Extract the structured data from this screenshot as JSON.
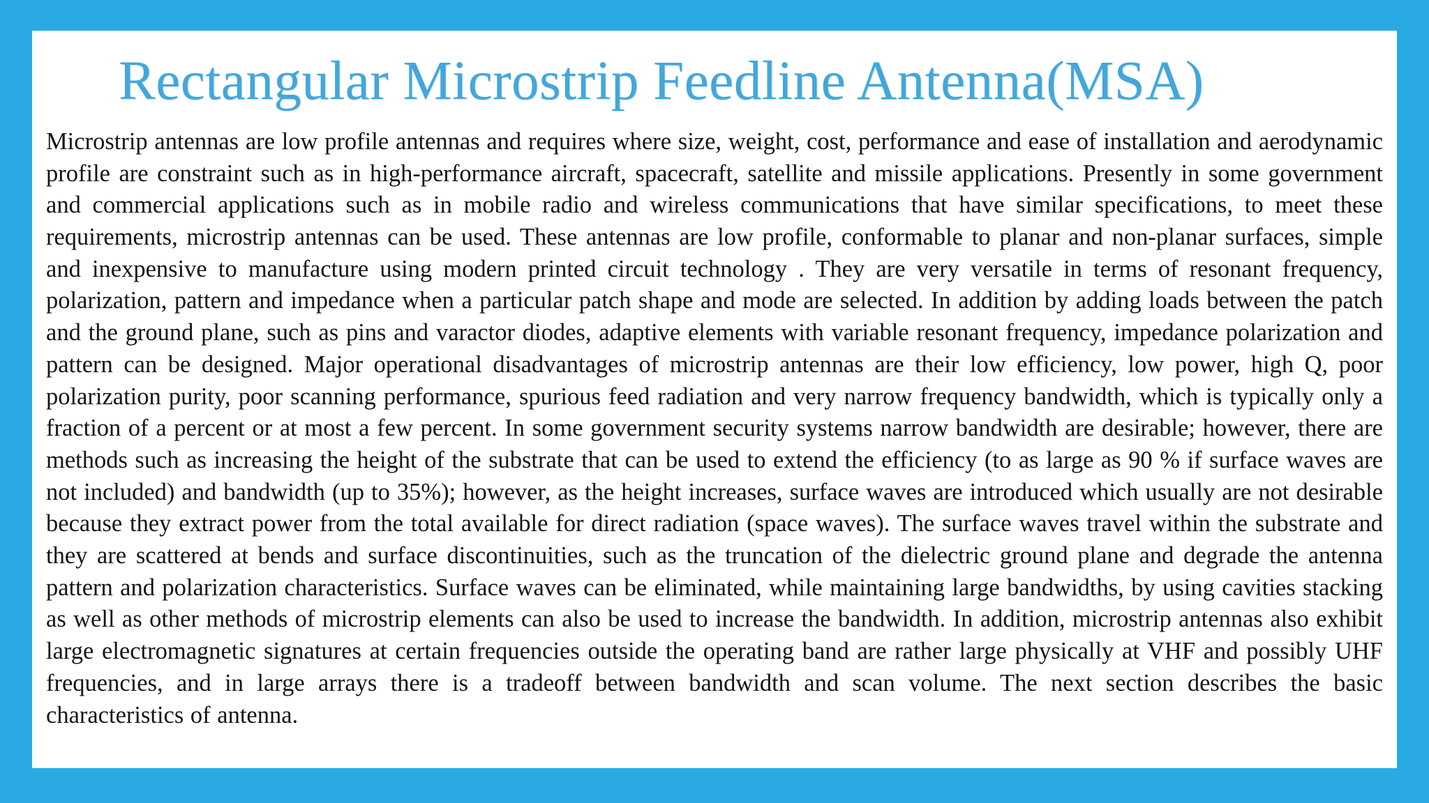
{
  "slide": {
    "title": "Rectangular Microstrip Feedline Antenna(MSA)",
    "body": "Microstrip antennas are low profile antennas and requires where size, weight, cost, performance and ease of installation and aerodynamic profile are constraint such as in high-performance aircraft, spacecraft, satellite and missile applications. Presently in some government and commercial applications such as in mobile radio and wireless communications that have similar specifications, to meet these requirements, microstrip antennas can be used. These antennas are low profile, conformable to planar and non-planar surfaces, simple and inexpensive to manufacture using modern printed circuit technology . They are very versatile in terms of resonant frequency, polarization, pattern and impedance when a particular patch shape and mode are selected. In addition by adding loads between the patch and the ground plane, such as pins and varactor diodes, adaptive elements with variable resonant frequency, impedance polarization and pattern can be designed. Major operational disadvantages of microstrip antennas are their low efficiency, low power, high Q, poor polarization purity, poor scanning performance, spurious feed radiation and very narrow frequency bandwidth, which is typically only a fraction of a percent or at most a few percent. In some government security systems narrow bandwidth are desirable; however, there are methods such as increasing the height of the substrate that can be used to extend the efficiency (to as large as 90 % if surface waves are not included) and bandwidth (up to 35%); however, as the height increases, surface waves are introduced which usually are not desirable because they extract power from the total available for direct radiation (space waves). The surface waves travel within the substrate and they are scattered at bends and surface discontinuities, such as the truncation of the dielectric ground plane and degrade the antenna pattern and polarization characteristics. Surface waves can be eliminated, while maintaining large bandwidths, by using cavities stacking as well as other methods of microstrip elements can also be used to increase the bandwidth. In addition, microstrip antennas also exhibit large electromagnetic signatures at certain frequencies outside the operating band are rather large physically at VHF and possibly UHF frequencies, and in large arrays there is a tradeoff between bandwidth and scan volume. The next section describes the basic characteristics of antenna.",
    "colors": {
      "border_color": "#29aae3",
      "title_color": "#43a7db",
      "body_text_color": "#141414",
      "background_color": "#ffffff"
    }
  }
}
